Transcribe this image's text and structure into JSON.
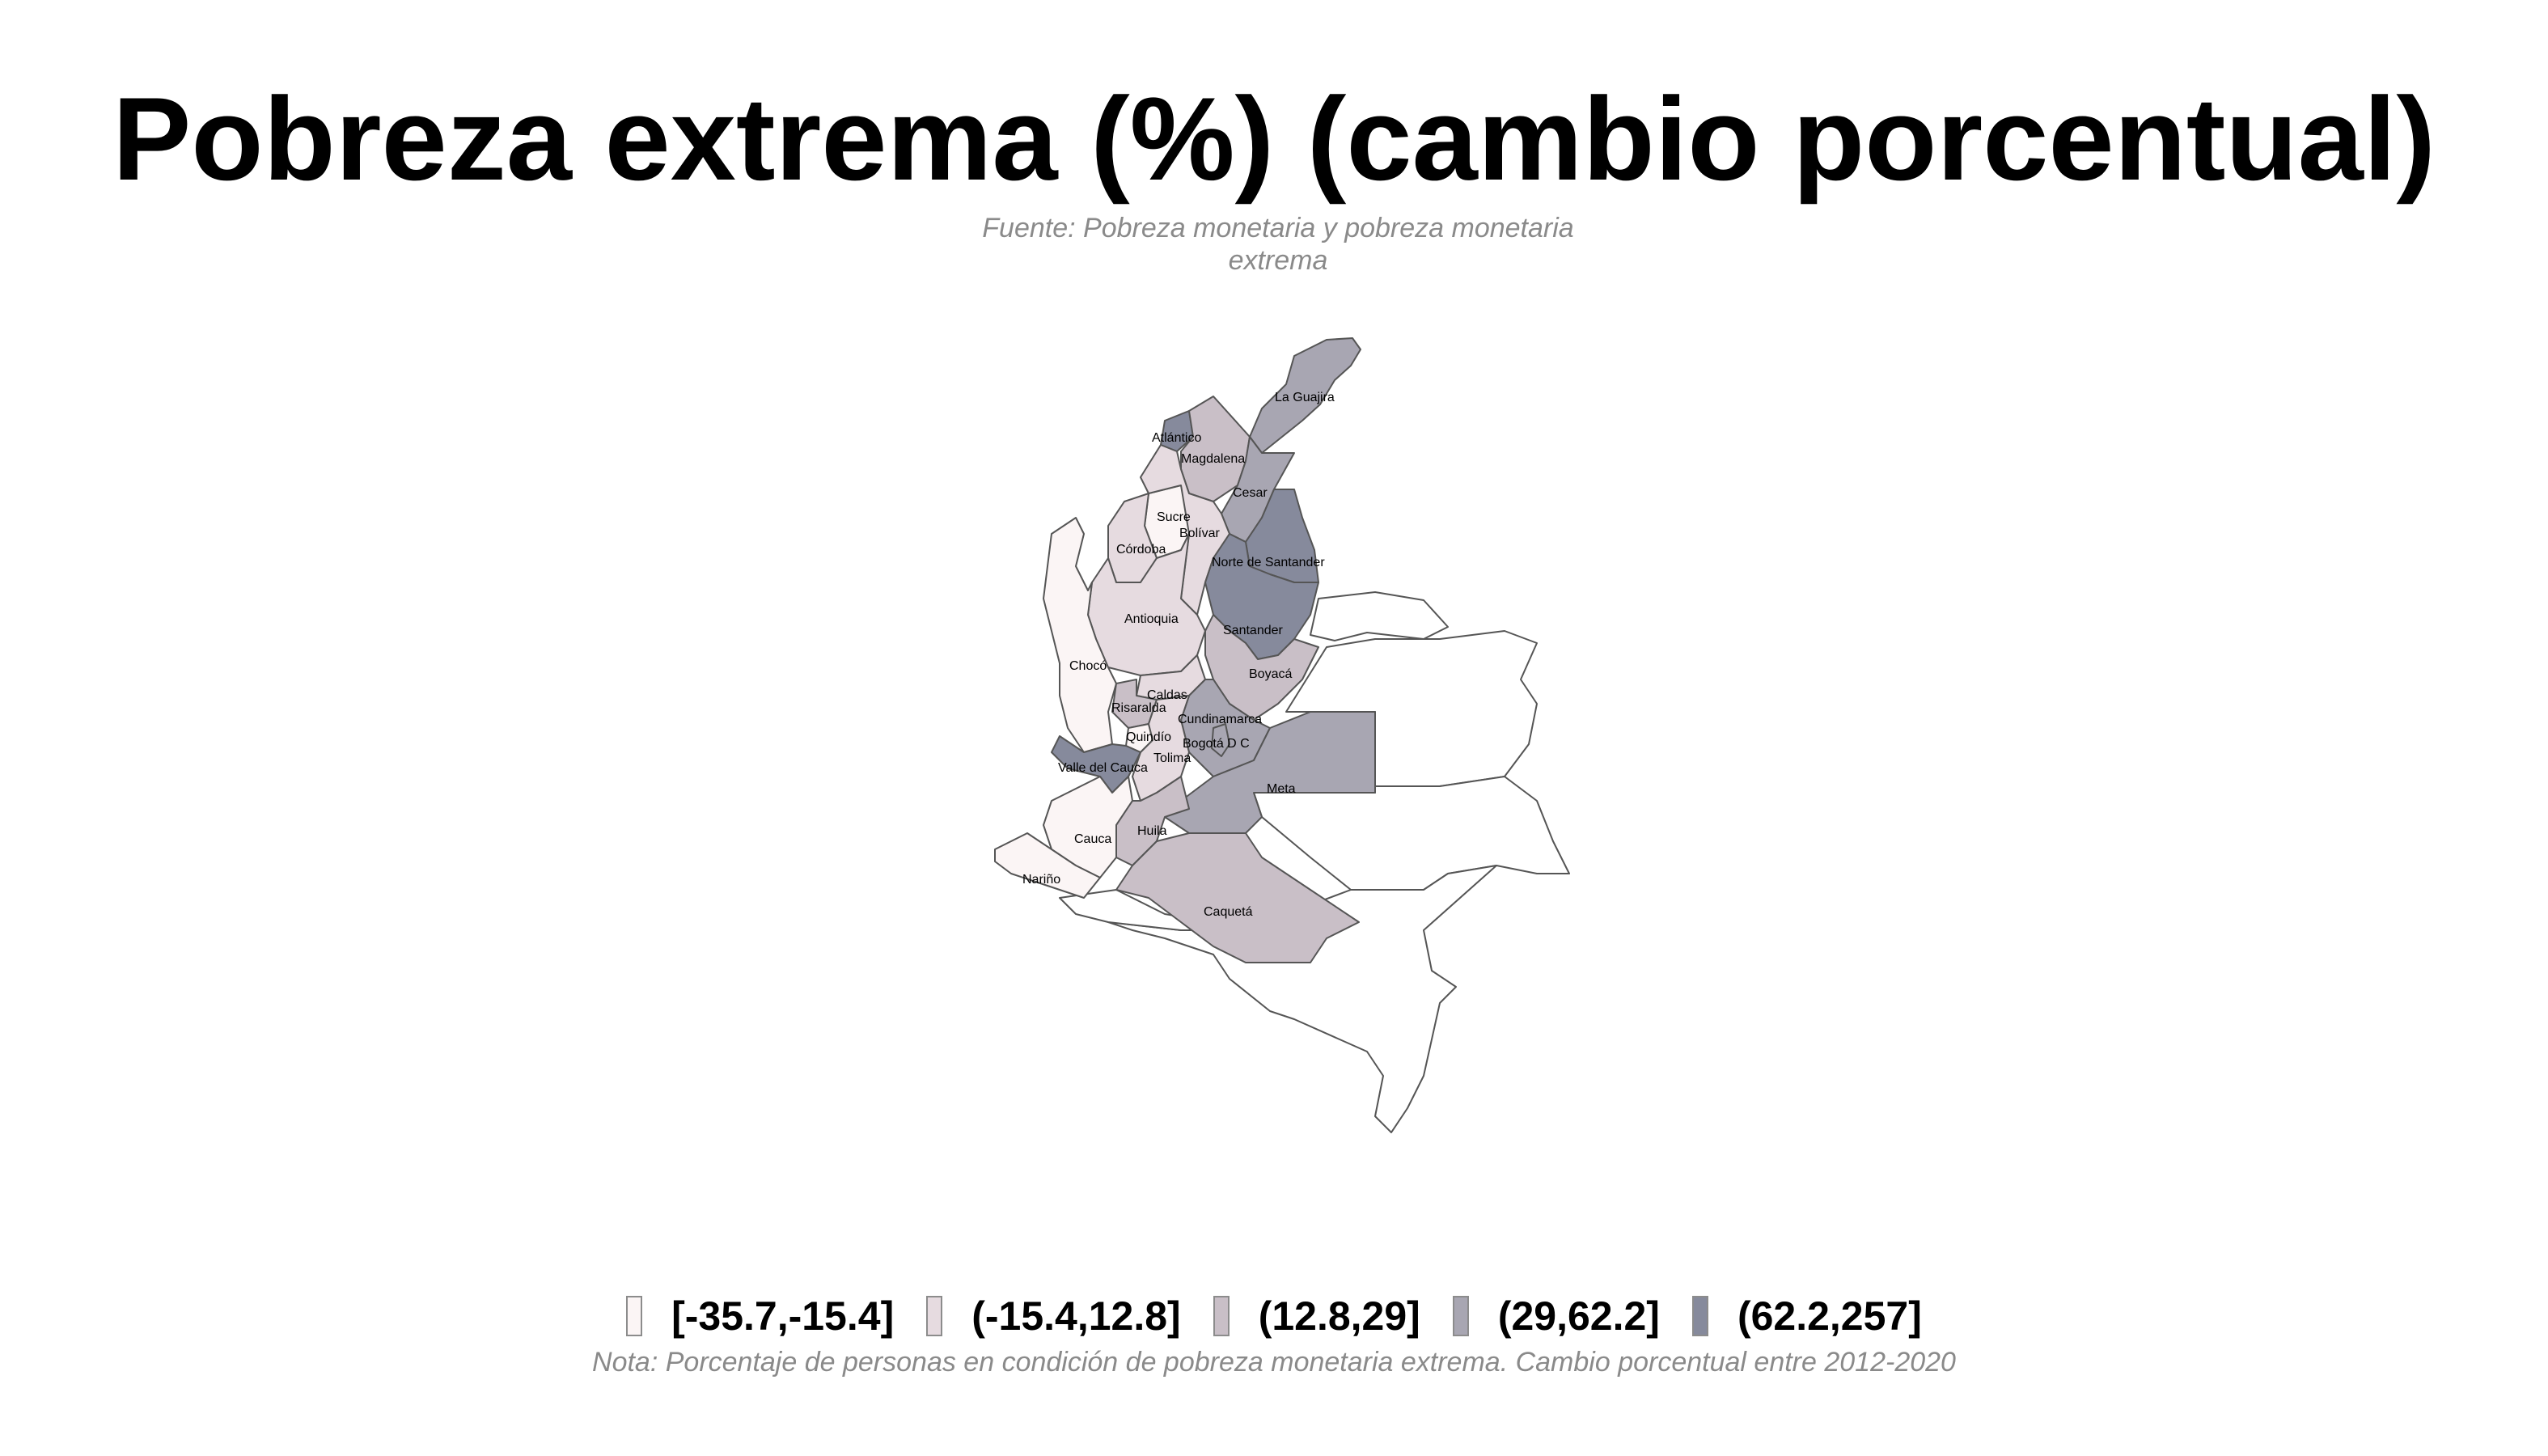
{
  "title": "Pobreza extrema (%) (cambio porcentual)",
  "source": "Fuente: Pobreza monetaria y pobreza monetaria extrema",
  "note": "Nota: Porcentaje de personas en condición de pobreza monetaria extrema. Cambio porcentual entre 2012-2020",
  "legend": [
    {
      "label": "[-35.7,-15.4]",
      "color": "#fbf5f5"
    },
    {
      "label": "(-15.4,12.8]",
      "color": "#e6dbe0"
    },
    {
      "label": "(12.8,29]",
      "color": "#c9bfc7"
    },
    {
      "label": "(29,62.2]",
      "color": "#a8a6b2"
    },
    {
      "label": "(62.2,257]",
      "color": "#868a9c"
    }
  ],
  "colors": {
    "no_data": "#ffffff",
    "border": "#555555"
  },
  "departments": [
    {
      "name": "La Guajira",
      "class": 3
    },
    {
      "name": "Atlántico",
      "class": 4
    },
    {
      "name": "Magdalena",
      "class": 2
    },
    {
      "name": "Cesar",
      "class": 3
    },
    {
      "name": "Sucre",
      "class": 0
    },
    {
      "name": "Bolívar",
      "class": 1
    },
    {
      "name": "Córdoba",
      "class": 1
    },
    {
      "name": "Norte de Santander",
      "class": 4
    },
    {
      "name": "Antioquia",
      "class": 1
    },
    {
      "name": "Santander",
      "class": 4
    },
    {
      "name": "Chocó",
      "class": 0
    },
    {
      "name": "Boyacá",
      "class": 2
    },
    {
      "name": "Caldas",
      "class": 1
    },
    {
      "name": "Risaralda",
      "class": 2
    },
    {
      "name": "Cundinamarca",
      "class": 3
    },
    {
      "name": "Quindío",
      "class": 0
    },
    {
      "name": "Bogotá D C",
      "class": 3
    },
    {
      "name": "Valle del Cauca",
      "class": 4
    },
    {
      "name": "Tolima",
      "class": 1
    },
    {
      "name": "Meta",
      "class": 3
    },
    {
      "name": "Cauca",
      "class": 0
    },
    {
      "name": "Huila",
      "class": 2
    },
    {
      "name": "Nariño",
      "class": 0
    },
    {
      "name": "Caquetá",
      "class": 2
    }
  ]
}
